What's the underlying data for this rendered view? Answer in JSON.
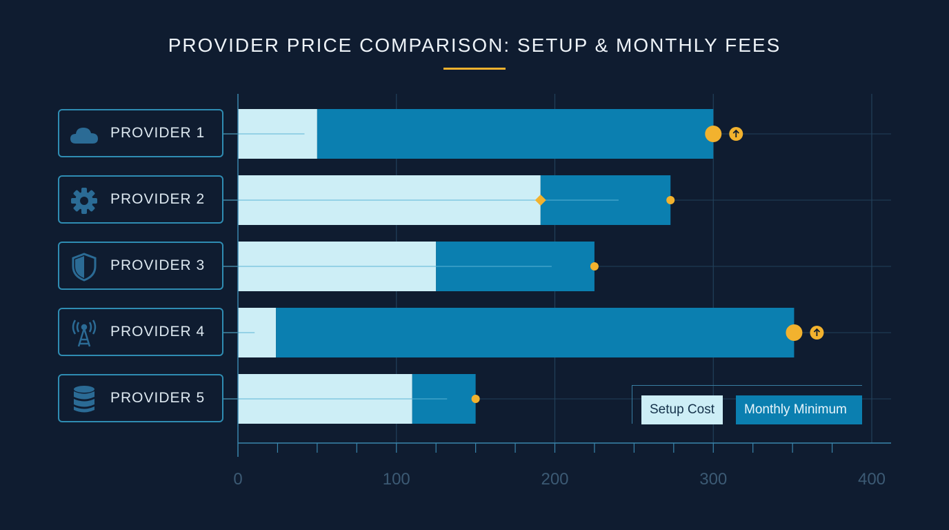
{
  "chart_data": {
    "type": "bar",
    "orientation": "horizontal",
    "stacked": true,
    "title": "PROVIDER PRICE COMPARISON: SETUP & MONTHLY FEES",
    "categories": [
      "PROVIDER 1",
      "PROVIDER 2",
      "PROVIDER 3",
      "PROVIDER 4",
      "PROVIDER 5"
    ],
    "category_icons": [
      "cloud-icon",
      "gear-icon",
      "shield-icon",
      "antenna-icon",
      "database-icon"
    ],
    "series": [
      {
        "name": "Setup Cost",
        "values": [
          50,
          191,
          125,
          24,
          110
        ],
        "color": "#cdeef6"
      },
      {
        "name": "Monthly Minimum",
        "values": [
          250,
          82,
          100,
          327,
          40
        ],
        "color": "#0b7fb0"
      }
    ],
    "totals": [
      300,
      273,
      225,
      351,
      150
    ],
    "total_marker_size": [
      "large",
      "small",
      "small",
      "large",
      "small"
    ],
    "up_arrow_badge": [
      true,
      false,
      false,
      true,
      false
    ],
    "diamond_marker_at_setup_end": [
      false,
      true,
      false,
      false,
      false
    ],
    "xlim": [
      0,
      400
    ],
    "x_ticks": [
      0,
      100,
      200,
      300,
      400
    ],
    "grid": true,
    "legend_position": "bottom-right",
    "accent_color": "#f2b22e",
    "xlabel": "",
    "ylabel": ""
  }
}
